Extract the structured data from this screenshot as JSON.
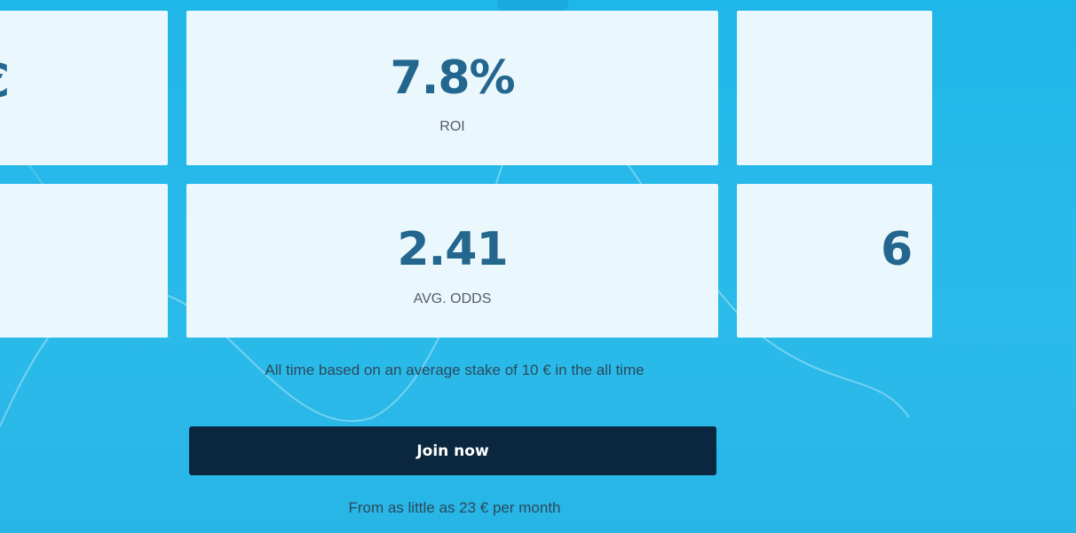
{
  "stats": [
    {
      "value": "€",
      "label": ""
    },
    {
      "value": "7.8%",
      "label": "ROI"
    },
    {
      "value": "",
      "label": ""
    },
    {
      "value": "",
      "label": ""
    },
    {
      "value": "2.41",
      "label": "AVG. ODDS"
    },
    {
      "value": "6",
      "label": ""
    }
  ],
  "note": "All time based on an average stake of 10 € in the all time",
  "join_button": "Join now",
  "price_note": "From as little as 23 € per month",
  "colors": {
    "background": "#1fb6e8",
    "card": "#eaf8fd",
    "value": "#23668e",
    "button": "#0b2740"
  }
}
